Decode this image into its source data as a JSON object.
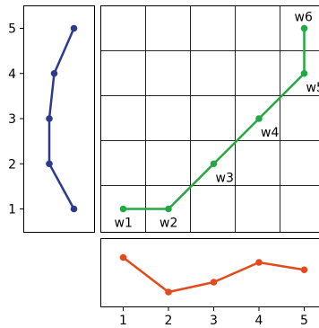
{
  "chart_data": [
    {
      "type": "line",
      "panel": "left",
      "color": "#2e3a8c",
      "x": [
        1.5,
        1.1,
        1.0,
        1.0,
        1.5
      ],
      "y": [
        5,
        4,
        3,
        2,
        1
      ],
      "ylim": [
        0.5,
        5.5
      ],
      "yticks": [
        "1",
        "2",
        "3",
        "4",
        "5"
      ]
    },
    {
      "type": "line",
      "panel": "main",
      "color": "#22a845",
      "grid": true,
      "points": [
        {
          "label": "w1",
          "x": 1,
          "y": 1
        },
        {
          "label": "w2",
          "x": 2,
          "y": 1
        },
        {
          "label": "w3",
          "x": 3,
          "y": 2
        },
        {
          "label": "w4",
          "x": 4,
          "y": 3
        },
        {
          "label": "w5",
          "x": 5,
          "y": 4
        },
        {
          "label": "w6",
          "x": 5,
          "y": 5
        }
      ]
    },
    {
      "type": "line",
      "panel": "bottom",
      "color": "#e34a1e",
      "x": [
        1,
        2,
        3,
        4,
        5
      ],
      "y": [
        0.9,
        0.2,
        0.4,
        0.8,
        0.65
      ],
      "xticks": [
        "1",
        "2",
        "3",
        "4",
        "5"
      ]
    }
  ]
}
